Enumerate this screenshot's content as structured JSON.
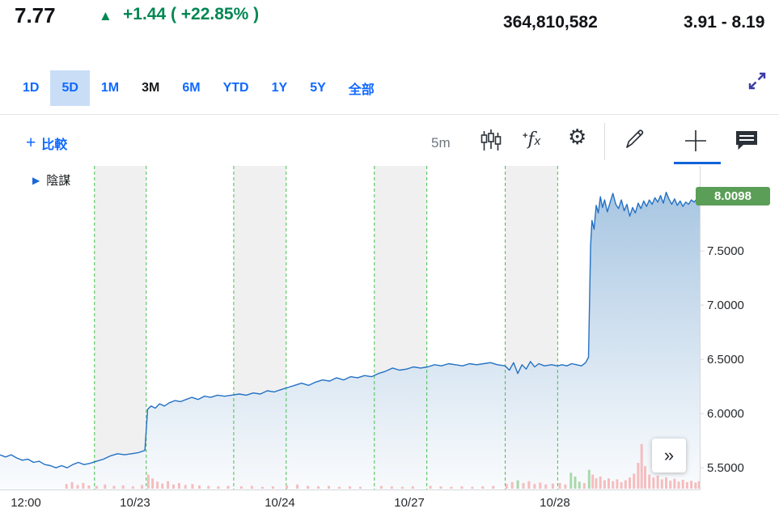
{
  "header": {
    "price": "7.77",
    "arrow": "▲",
    "change": "+1.44 ( +22.85% )",
    "volume": "364,810,582",
    "day_range": "3.91 - 8.19"
  },
  "tabs": {
    "items": [
      {
        "label": "1D"
      },
      {
        "label": "5D"
      },
      {
        "label": "1M"
      },
      {
        "label": "3M"
      },
      {
        "label": "6M"
      },
      {
        "label": "YTD"
      },
      {
        "label": "1Y"
      },
      {
        "label": "5Y"
      },
      {
        "label": "全部"
      }
    ],
    "selected": "5D"
  },
  "toolbar": {
    "compare_plus": "+",
    "compare_label": "比較",
    "interval": "5m",
    "fx_plus": "+",
    "fx_f": "f",
    "fx_x": "x",
    "gear_glyph": "⚙"
  },
  "legend": {
    "marker": "▶",
    "label": "陰謀"
  },
  "more_button": "»",
  "theme": {
    "accent_blue": "#0f69ff",
    "positive_green": "#008753",
    "selected_tab_bg": "#c9def6",
    "active_tool_blue": "#1163d9"
  },
  "chart_data": {
    "type": "area",
    "title": "",
    "last_price": "8.0098",
    "ylim": [
      5.3,
      8.284
    ],
    "y_ticks": [
      {
        "label": "7.5000",
        "value": 7.5
      },
      {
        "label": "7.0000",
        "value": 7.0
      },
      {
        "label": "6.5000",
        "value": 6.5
      },
      {
        "label": "6.0000",
        "value": 6.0
      },
      {
        "label": "5.5000",
        "value": 5.5
      }
    ],
    "x_ticks": [
      {
        "label": "12:00",
        "x": 0.037
      },
      {
        "label": "10/23",
        "x": 0.193
      },
      {
        "label": "10/24",
        "x": 0.4
      },
      {
        "label": "10/27",
        "x": 0.585
      },
      {
        "label": "10/28",
        "x": 0.793
      }
    ],
    "sessions_shaded": [
      [
        0.135,
        0.209
      ],
      [
        0.334,
        0.409
      ],
      [
        0.535,
        0.61
      ],
      [
        0.722,
        0.797
      ]
    ],
    "dashed_lines": [
      0.135,
      0.209,
      0.334,
      0.409,
      0.535,
      0.61,
      0.722,
      0.797
    ],
    "colors": {
      "line_blue": "#2471c4",
      "area_top": "#a3c3e0",
      "area_bottom": "#f9fbfd",
      "band_gray": "#f0f0f1",
      "session_line_green": "#44c04e",
      "vol_down": "#f5bdbf",
      "vol_up": "#a9d8ab",
      "axis_line": "#d5d9dd",
      "axis_text": "#25282c",
      "badge_green": "#5b9e57"
    },
    "series": [
      {
        "name": "陰謀",
        "points": [
          [
            0.0,
            5.62
          ],
          [
            0.008,
            5.6
          ],
          [
            0.016,
            5.62
          ],
          [
            0.024,
            5.59
          ],
          [
            0.032,
            5.57
          ],
          [
            0.04,
            5.58
          ],
          [
            0.048,
            5.55
          ],
          [
            0.056,
            5.56
          ],
          [
            0.064,
            5.53
          ],
          [
            0.072,
            5.52
          ],
          [
            0.08,
            5.5
          ],
          [
            0.088,
            5.52
          ],
          [
            0.096,
            5.5
          ],
          [
            0.104,
            5.53
          ],
          [
            0.112,
            5.55
          ],
          [
            0.12,
            5.53
          ],
          [
            0.128,
            5.54
          ],
          [
            0.138,
            5.56
          ],
          [
            0.148,
            5.58
          ],
          [
            0.158,
            5.61
          ],
          [
            0.168,
            5.63
          ],
          [
            0.178,
            5.62
          ],
          [
            0.188,
            5.63
          ],
          [
            0.198,
            5.64
          ],
          [
            0.207,
            5.66
          ],
          [
            0.211,
            6.04
          ],
          [
            0.216,
            6.07
          ],
          [
            0.222,
            6.05
          ],
          [
            0.228,
            6.09
          ],
          [
            0.235,
            6.07
          ],
          [
            0.242,
            6.1
          ],
          [
            0.25,
            6.12
          ],
          [
            0.258,
            6.11
          ],
          [
            0.266,
            6.13
          ],
          [
            0.274,
            6.15
          ],
          [
            0.283,
            6.13
          ],
          [
            0.292,
            6.16
          ],
          [
            0.301,
            6.15
          ],
          [
            0.311,
            6.17
          ],
          [
            0.321,
            6.16
          ],
          [
            0.331,
            6.17
          ],
          [
            0.342,
            6.18
          ],
          [
            0.352,
            6.17
          ],
          [
            0.362,
            6.19
          ],
          [
            0.372,
            6.18
          ],
          [
            0.382,
            6.21
          ],
          [
            0.392,
            6.2
          ],
          [
            0.401,
            6.22
          ],
          [
            0.411,
            6.24
          ],
          [
            0.421,
            6.26
          ],
          [
            0.431,
            6.28
          ],
          [
            0.441,
            6.26
          ],
          [
            0.451,
            6.29
          ],
          [
            0.461,
            6.31
          ],
          [
            0.471,
            6.3
          ],
          [
            0.481,
            6.33
          ],
          [
            0.491,
            6.31
          ],
          [
            0.501,
            6.34
          ],
          [
            0.511,
            6.33
          ],
          [
            0.521,
            6.35
          ],
          [
            0.531,
            6.34
          ],
          [
            0.541,
            6.37
          ],
          [
            0.551,
            6.39
          ],
          [
            0.561,
            6.42
          ],
          [
            0.571,
            6.4
          ],
          [
            0.581,
            6.41
          ],
          [
            0.591,
            6.43
          ],
          [
            0.601,
            6.42
          ],
          [
            0.611,
            6.43
          ],
          [
            0.621,
            6.45
          ],
          [
            0.631,
            6.44
          ],
          [
            0.641,
            6.46
          ],
          [
            0.651,
            6.45
          ],
          [
            0.661,
            6.44
          ],
          [
            0.671,
            6.46
          ],
          [
            0.681,
            6.45
          ],
          [
            0.691,
            6.46
          ],
          [
            0.701,
            6.47
          ],
          [
            0.711,
            6.45
          ],
          [
            0.722,
            6.44
          ],
          [
            0.728,
            6.4
          ],
          [
            0.734,
            6.47
          ],
          [
            0.74,
            6.37
          ],
          [
            0.746,
            6.45
          ],
          [
            0.752,
            6.41
          ],
          [
            0.758,
            6.48
          ],
          [
            0.764,
            6.43
          ],
          [
            0.77,
            6.46
          ],
          [
            0.778,
            6.44
          ],
          [
            0.788,
            6.45
          ],
          [
            0.797,
            6.44
          ],
          [
            0.803,
            6.45
          ],
          [
            0.81,
            6.44
          ],
          [
            0.817,
            6.46
          ],
          [
            0.824,
            6.45
          ],
          [
            0.831,
            6.44
          ],
          [
            0.837,
            6.47
          ],
          [
            0.841,
            6.52
          ],
          [
            0.844,
            7.55
          ],
          [
            0.846,
            7.78
          ],
          [
            0.849,
            7.7
          ],
          [
            0.852,
            7.92
          ],
          [
            0.855,
            7.85
          ],
          [
            0.858,
            8.0
          ],
          [
            0.861,
            7.9
          ],
          [
            0.864,
            7.97
          ],
          [
            0.868,
            7.86
          ],
          [
            0.872,
            7.95
          ],
          [
            0.876,
            8.03
          ],
          [
            0.88,
            7.93
          ],
          [
            0.884,
            7.89
          ],
          [
            0.888,
            7.97
          ],
          [
            0.892,
            7.87
          ],
          [
            0.896,
            7.93
          ],
          [
            0.9,
            7.82
          ],
          [
            0.904,
            7.9
          ],
          [
            0.908,
            7.85
          ],
          [
            0.912,
            7.94
          ],
          [
            0.916,
            7.89
          ],
          [
            0.92,
            7.96
          ],
          [
            0.924,
            7.91
          ],
          [
            0.928,
            7.97
          ],
          [
            0.932,
            7.93
          ],
          [
            0.936,
            7.99
          ],
          [
            0.94,
            7.95
          ],
          [
            0.944,
            8.01
          ],
          [
            0.948,
            7.94
          ],
          [
            0.952,
            8.04
          ],
          [
            0.956,
            7.98
          ],
          [
            0.96,
            7.93
          ],
          [
            0.964,
            7.98
          ],
          [
            0.968,
            7.92
          ],
          [
            0.972,
            7.96
          ],
          [
            0.976,
            7.91
          ],
          [
            0.98,
            7.95
          ],
          [
            0.984,
            7.93
          ],
          [
            0.988,
            7.97
          ],
          [
            0.992,
            7.95
          ],
          [
            0.996,
            7.98
          ],
          [
            1.0,
            8.01
          ]
        ]
      }
    ],
    "volume": [
      [
        0.095,
        0.1
      ],
      [
        0.103,
        0.14
      ],
      [
        0.111,
        0.08
      ],
      [
        0.119,
        0.12
      ],
      [
        0.127,
        0.07
      ],
      [
        0.138,
        0.06
      ],
      [
        0.15,
        0.09
      ],
      [
        0.163,
        0.06
      ],
      [
        0.176,
        0.07
      ],
      [
        0.19,
        0.05
      ],
      [
        0.203,
        0.08
      ],
      [
        0.212,
        0.3
      ],
      [
        0.218,
        0.22
      ],
      [
        0.225,
        0.15
      ],
      [
        0.232,
        0.11
      ],
      [
        0.24,
        0.16
      ],
      [
        0.248,
        0.09
      ],
      [
        0.256,
        0.12
      ],
      [
        0.265,
        0.08
      ],
      [
        0.275,
        0.1
      ],
      [
        0.285,
        0.07
      ],
      [
        0.298,
        0.06
      ],
      [
        0.312,
        0.05
      ],
      [
        0.326,
        0.06
      ],
      [
        0.345,
        0.05
      ],
      [
        0.36,
        0.06
      ],
      [
        0.375,
        0.04
      ],
      [
        0.39,
        0.05
      ],
      [
        0.41,
        0.07
      ],
      [
        0.425,
        0.09
      ],
      [
        0.44,
        0.06
      ],
      [
        0.455,
        0.05
      ],
      [
        0.47,
        0.06
      ],
      [
        0.485,
        0.04
      ],
      [
        0.5,
        0.05
      ],
      [
        0.515,
        0.04
      ],
      [
        0.545,
        0.06
      ],
      [
        0.56,
        0.05
      ],
      [
        0.575,
        0.04
      ],
      [
        0.59,
        0.05
      ],
      [
        0.615,
        0.06
      ],
      [
        0.63,
        0.05
      ],
      [
        0.645,
        0.04
      ],
      [
        0.66,
        0.05
      ],
      [
        0.675,
        0.04
      ],
      [
        0.69,
        0.05
      ],
      [
        0.705,
        0.06
      ],
      [
        0.724,
        0.1
      ],
      [
        0.732,
        0.14
      ],
      [
        0.74,
        0.18,
        "up"
      ],
      [
        0.748,
        0.12
      ],
      [
        0.756,
        0.16
      ],
      [
        0.764,
        0.1
      ],
      [
        0.772,
        0.13
      ],
      [
        0.78,
        0.09
      ],
      [
        0.79,
        0.11
      ],
      [
        0.8,
        0.12
      ],
      [
        0.808,
        0.09
      ],
      [
        0.816,
        0.34,
        "up"
      ],
      [
        0.822,
        0.26,
        "up"
      ],
      [
        0.828,
        0.15,
        "up"
      ],
      [
        0.835,
        0.12
      ],
      [
        0.842,
        0.4,
        "up"
      ],
      [
        0.847,
        0.3
      ],
      [
        0.852,
        0.22
      ],
      [
        0.858,
        0.26
      ],
      [
        0.864,
        0.18
      ],
      [
        0.87,
        0.22
      ],
      [
        0.876,
        0.16
      ],
      [
        0.882,
        0.2
      ],
      [
        0.888,
        0.14
      ],
      [
        0.894,
        0.18
      ],
      [
        0.9,
        0.24
      ],
      [
        0.906,
        0.32
      ],
      [
        0.912,
        0.55
      ],
      [
        0.917,
        0.95
      ],
      [
        0.922,
        0.48
      ],
      [
        0.928,
        0.3
      ],
      [
        0.934,
        0.24
      ],
      [
        0.94,
        0.28
      ],
      [
        0.946,
        0.2
      ],
      [
        0.952,
        0.24
      ],
      [
        0.958,
        0.17
      ],
      [
        0.964,
        0.21
      ],
      [
        0.97,
        0.15
      ],
      [
        0.976,
        0.19
      ],
      [
        0.982,
        0.14
      ],
      [
        0.988,
        0.17
      ],
      [
        0.994,
        0.13
      ],
      [
        0.999,
        0.16
      ]
    ]
  }
}
